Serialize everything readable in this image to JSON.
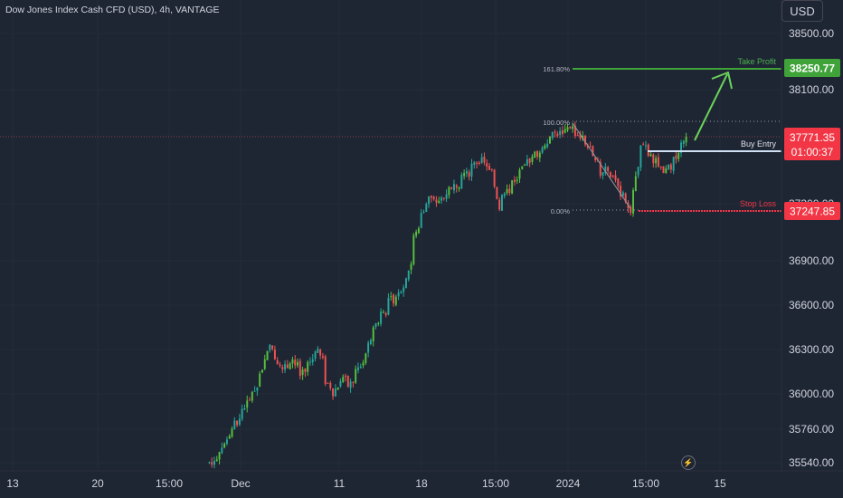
{
  "header": {
    "symbol_title": "Dow Jones Index Cash CFD (USD), 4h, VANTAGE"
  },
  "price_axis": {
    "currency": "USD",
    "tick_labels": [
      "38500.00",
      "38100.00",
      "37300.00",
      "36900.00",
      "36600.00",
      "36300.00",
      "36000.00",
      "35760.00",
      "35540.00"
    ]
  },
  "time_axis": {
    "tick_labels": [
      "13",
      "20",
      "15:00",
      "Dec",
      "11",
      "18",
      "15:00",
      "2024",
      "15:00",
      "15"
    ]
  },
  "badges": {
    "take_profit_price": "38250.77",
    "current_price": "37771.35",
    "countdown": "01:00:37",
    "stop_loss_price": "37247.85"
  },
  "annotations": {
    "take_profit_label": "Take Profit",
    "buy_entry_label": "Buy Entry",
    "stop_loss_label": "Stop Loss",
    "fib_161": "161.80%",
    "fib_100": "100.00%",
    "fib_0": "0.00%"
  },
  "colors": {
    "background": "#1e2634",
    "up_candle": "#26a69a",
    "up_candle_lime": "#56c13e",
    "down_candle": "#ef5350",
    "take_profit": "#3fa33a",
    "stop_loss": "#f23645",
    "buy_entry_line": "#cfe0f5"
  },
  "chart_data": {
    "type": "candlestick",
    "title": "Dow Jones Index Cash CFD (USD), 4h, VANTAGE",
    "y_axis_unit": "USD",
    "y_tick_labels": [
      "38500.00",
      "38100.00",
      "37300.00",
      "36900.00",
      "36600.00",
      "36300.00",
      "36000.00",
      "35760.00",
      "35540.00"
    ],
    "x_tick_labels": [
      "13",
      "20",
      "15:00",
      "Dec",
      "11",
      "18",
      "15:00",
      "2024",
      "15:00",
      "15"
    ],
    "levels": {
      "take_profit": 38250.77,
      "last_price": 37771.35,
      "stop_loss": 37247.85,
      "fib_100_percent": 37880,
      "fib_0_percent": 37250
    },
    "price_path": [
      [
        35540,
        35540
      ],
      [
        35580,
        35620
      ],
      [
        35660,
        35700
      ],
      [
        35750,
        35800
      ],
      [
        35830,
        35900
      ],
      [
        35950,
        36010
      ],
      [
        36050,
        36100
      ],
      [
        36250,
        36320
      ],
      [
        36300,
        36250
      ],
      [
        36200,
        36150
      ],
      [
        36230,
        36260
      ],
      [
        36180,
        36120
      ],
      [
        36160,
        36200
      ],
      [
        36250,
        36310
      ],
      [
        36220,
        36100
      ],
      [
        36050,
        36000
      ],
      [
        36060,
        36120
      ],
      [
        36080,
        36050
      ],
      [
        36100,
        36150
      ],
      [
        36200,
        36280
      ],
      [
        36350,
        36450
      ],
      [
        36500,
        36550
      ],
      [
        36560,
        36620
      ],
      [
        36650,
        36700
      ],
      [
        36720,
        36780
      ],
      [
        36900,
        37050
      ],
      [
        37150,
        37250
      ],
      [
        37300,
        37350
      ],
      [
        37280,
        37320
      ],
      [
        37350,
        37400
      ],
      [
        37380,
        37420
      ],
      [
        37450,
        37520
      ],
      [
        37500,
        37550
      ],
      [
        37600,
        37620
      ],
      [
        37580,
        37550
      ],
      [
        37500,
        37450
      ],
      [
        37200,
        37350
      ],
      [
        37400,
        37460
      ],
      [
        37480,
        37520
      ],
      [
        37550,
        37600
      ],
      [
        37620,
        37650
      ],
      [
        37680,
        37720
      ],
      [
        37750,
        37780
      ],
      [
        37800,
        37790
      ],
      [
        37820,
        37850
      ],
      [
        37830,
        37800
      ],
      [
        37760,
        37720
      ],
      [
        37680,
        37620
      ],
      [
        37560,
        37500
      ],
      [
        37580,
        37540
      ],
      [
        37480,
        37420
      ],
      [
        37350,
        37300
      ],
      [
        37260,
        37380
      ],
      [
        37600,
        37700
      ],
      [
        37680,
        37640
      ],
      [
        37600,
        37560
      ],
      [
        37500,
        37520
      ],
      [
        37580,
        37600
      ],
      [
        37650,
        37700
      ],
      [
        37740,
        37771.35
      ]
    ]
  }
}
